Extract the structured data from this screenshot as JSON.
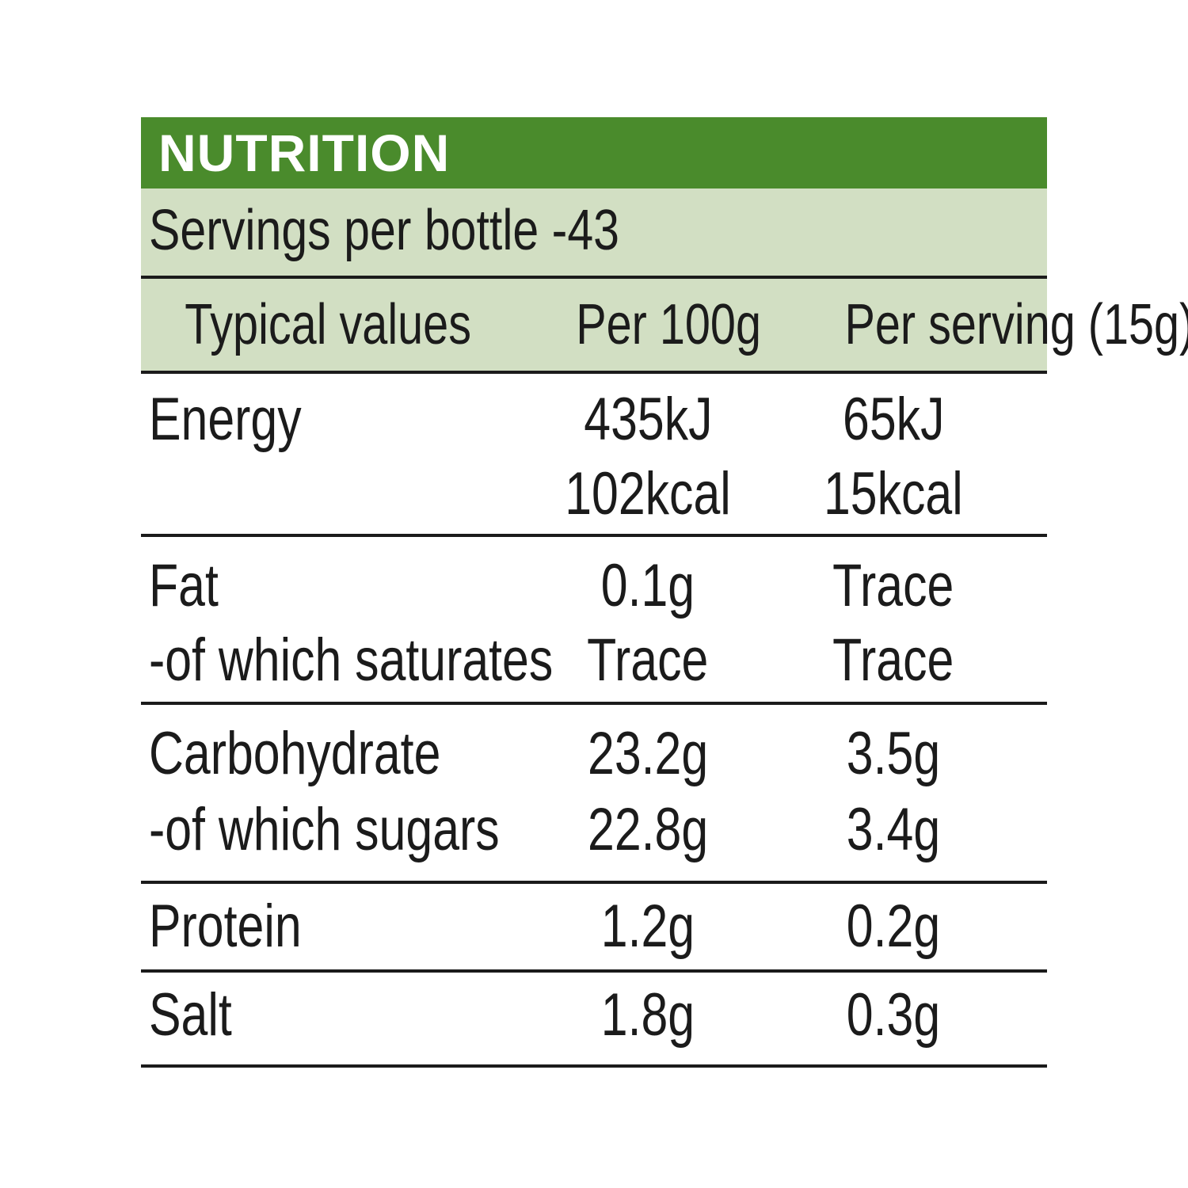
{
  "title": "NUTRITION",
  "servings": "Servings per bottle -43",
  "header": {
    "label": "Typical values",
    "per100": "Per 100g",
    "perServing": "Per serving (15g)"
  },
  "rows": {
    "energy": {
      "label": "Energy",
      "per100": [
        "435kJ",
        "102kcal"
      ],
      "perServing": [
        "65kJ",
        "15kcal"
      ]
    },
    "fat": {
      "label": "Fat",
      "per100": "0.1g",
      "perServing": "Trace"
    },
    "saturates": {
      "label": "-of which saturates",
      "per100": "Trace",
      "perServing": "Trace"
    },
    "carbohydrate": {
      "label": "Carbohydrate",
      "per100": "23.2g",
      "perServing": "3.5g"
    },
    "sugars": {
      "label": "-of which sugars",
      "per100": "22.8g",
      "perServing": "3.4g"
    },
    "protein": {
      "label": "Protein",
      "per100": "1.2g",
      "perServing": "0.2g"
    },
    "salt": {
      "label": "Salt",
      "per100": "1.8g",
      "perServing": "0.3g"
    }
  },
  "colors": {
    "title_bg": "#4a8b2c",
    "header_bg": "#d2dfc3",
    "text": "#1b1b1b"
  }
}
